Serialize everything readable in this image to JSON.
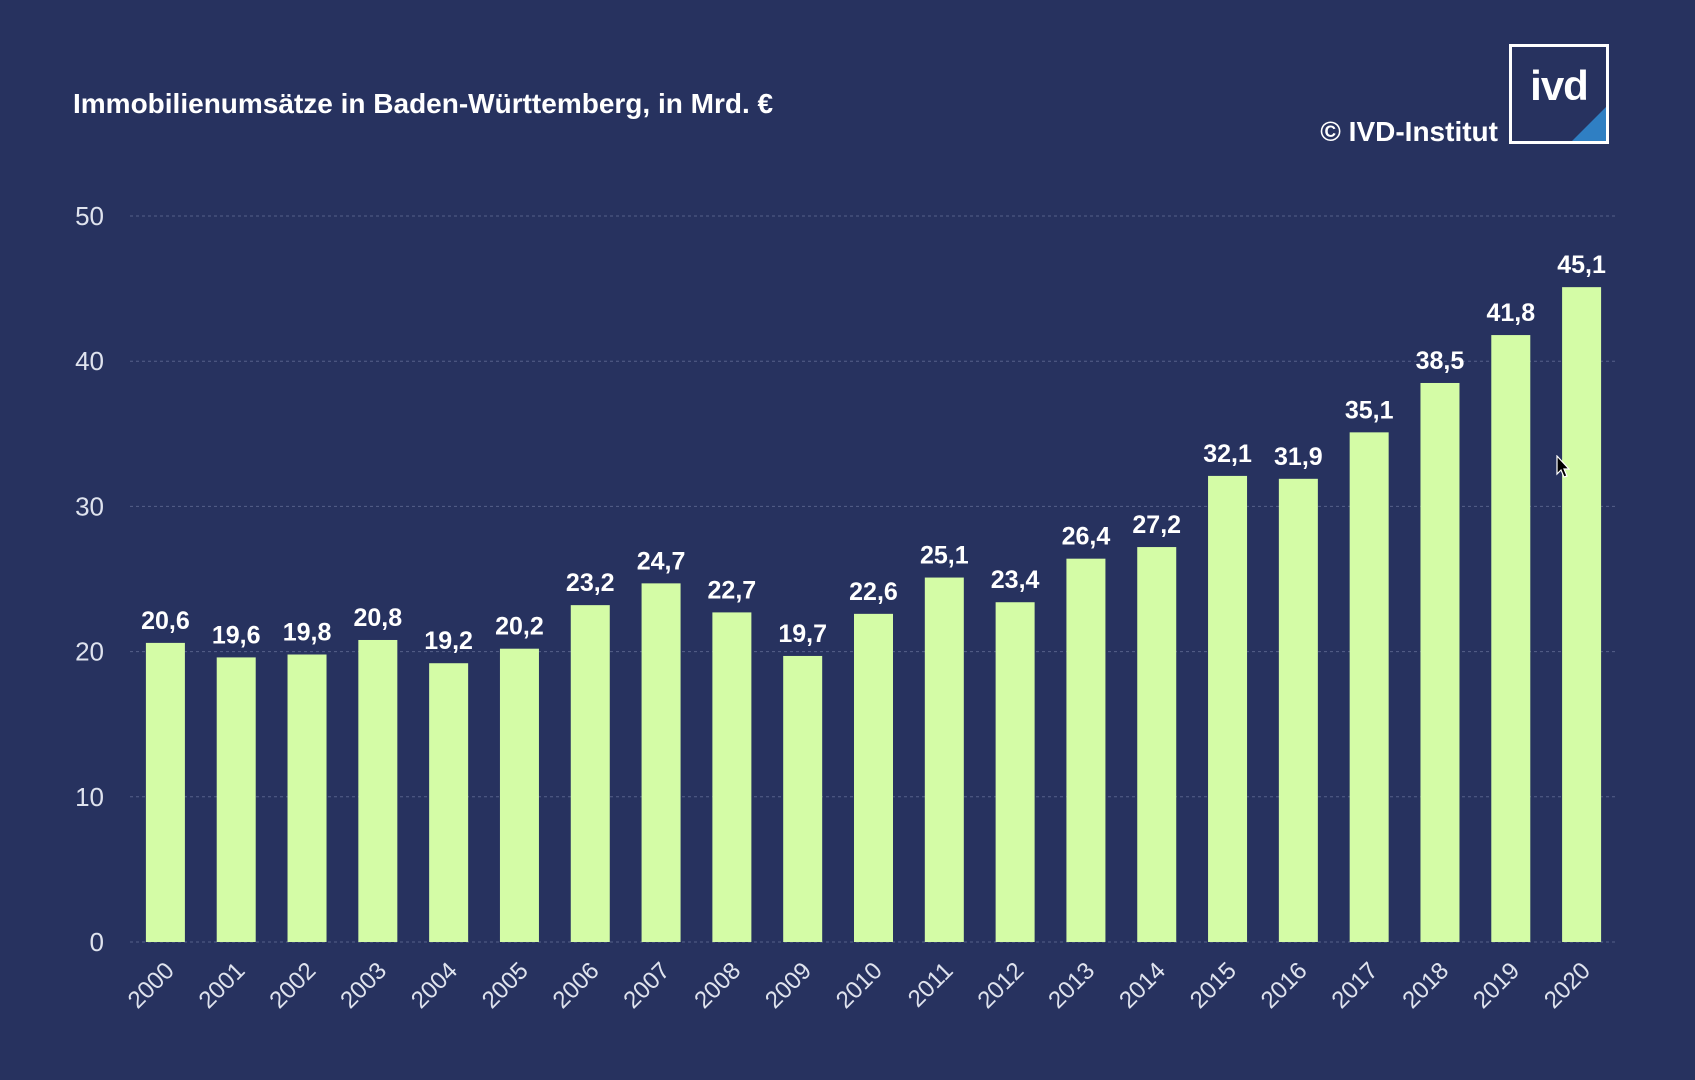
{
  "header": {
    "title": "Immobilienumsätze in Baden-Württemberg, in Mrd. €",
    "copyright": "© IVD-Institut",
    "logo_text": "ivd"
  },
  "colors": {
    "background": "#27325f",
    "bar": "#d4fca6",
    "text": "#ffffff",
    "tick_text": "#dfe3ee",
    "grid": "#56608a",
    "logo_accent": "#2f7fc3"
  },
  "chart_data": {
    "type": "bar",
    "title": "Immobilienumsätze in Baden-Württemberg, in Mrd. €",
    "xlabel": "",
    "ylabel": "",
    "categories": [
      "2000",
      "2001",
      "2002",
      "2003",
      "2004",
      "2005",
      "2006",
      "2007",
      "2008",
      "2009",
      "2010",
      "2011",
      "2012",
      "2013",
      "2014",
      "2015",
      "2016",
      "2017",
      "2018",
      "2019",
      "2020"
    ],
    "values": [
      20.6,
      19.6,
      19.8,
      20.8,
      19.2,
      20.2,
      23.2,
      24.7,
      22.7,
      19.7,
      22.6,
      25.1,
      23.4,
      26.4,
      27.2,
      32.1,
      31.9,
      35.1,
      38.5,
      41.8,
      45.1
    ],
    "value_labels": [
      "20,6",
      "19,6",
      "19,8",
      "20,8",
      "19,2",
      "20,2",
      "23,2",
      "24,7",
      "22,7",
      "19,7",
      "22,6",
      "25,1",
      "23,4",
      "26,4",
      "27,2",
      "32,1",
      "31,9",
      "35,1",
      "38,5",
      "41,8",
      "45,1"
    ],
    "ylim": [
      0,
      50
    ],
    "yticks": [
      0,
      10,
      20,
      30,
      40,
      50
    ],
    "ytick_labels": [
      "0",
      "10",
      "20",
      "30",
      "40",
      "50"
    ],
    "grid": true,
    "legend": "none"
  }
}
